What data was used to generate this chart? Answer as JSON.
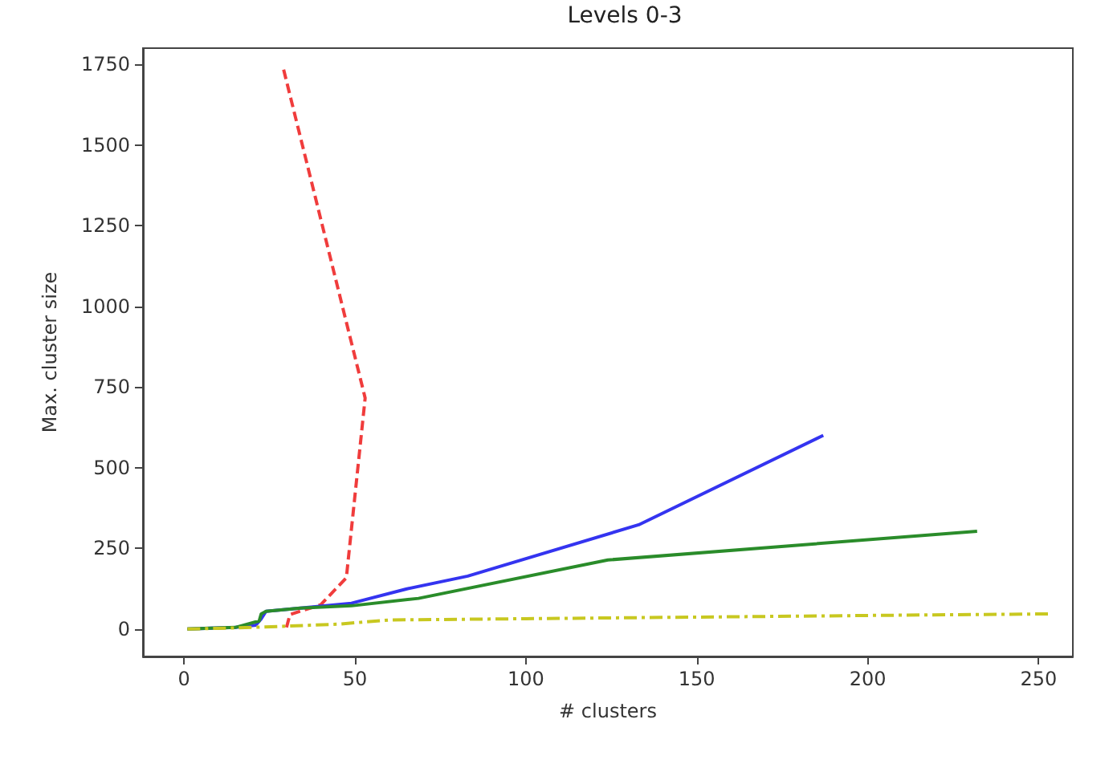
{
  "chart_data": {
    "type": "line",
    "title": "Levels 0-3",
    "xlabel": "# clusters",
    "ylabel": "Max. cluster size",
    "xlim": [
      -12,
      260
    ],
    "ylim": [
      -85,
      1800
    ],
    "xticks": [
      0,
      50,
      100,
      150,
      200,
      250
    ],
    "yticks": [
      0,
      250,
      500,
      750,
      1000,
      1250,
      1500,
      1750
    ],
    "grid": false,
    "marker": "none",
    "series": [
      {
        "color": "#f03c3c",
        "line_style": "dashed",
        "x": [
          30,
          31,
          40,
          47.5,
          53,
          29
        ],
        "values": [
          5,
          45,
          75,
          159,
          716,
          1740
        ]
      },
      {
        "color": "#3434f0",
        "line_style": "solid",
        "x": [
          1,
          15,
          21,
          22.5,
          24,
          49,
          65,
          83,
          133,
          187
        ],
        "values": [
          0,
          5,
          12,
          30,
          55,
          80,
          124,
          164,
          323,
          600
        ]
      },
      {
        "color": "#2a8c2a",
        "line_style": "solid",
        "x": [
          1,
          15,
          22,
          22.6,
          24,
          34,
          49,
          68.6,
          124,
          232
        ],
        "values": [
          0,
          5,
          25,
          47,
          55,
          65,
          72,
          95,
          214,
          303
        ]
      },
      {
        "color": "#c8c820",
        "line_style": "dashdot",
        "x": [
          1,
          20,
          45,
          60,
          100,
          150,
          200,
          254
        ],
        "values": [
          0,
          5,
          15,
          28,
          32,
          37,
          42,
          47
        ]
      }
    ]
  }
}
